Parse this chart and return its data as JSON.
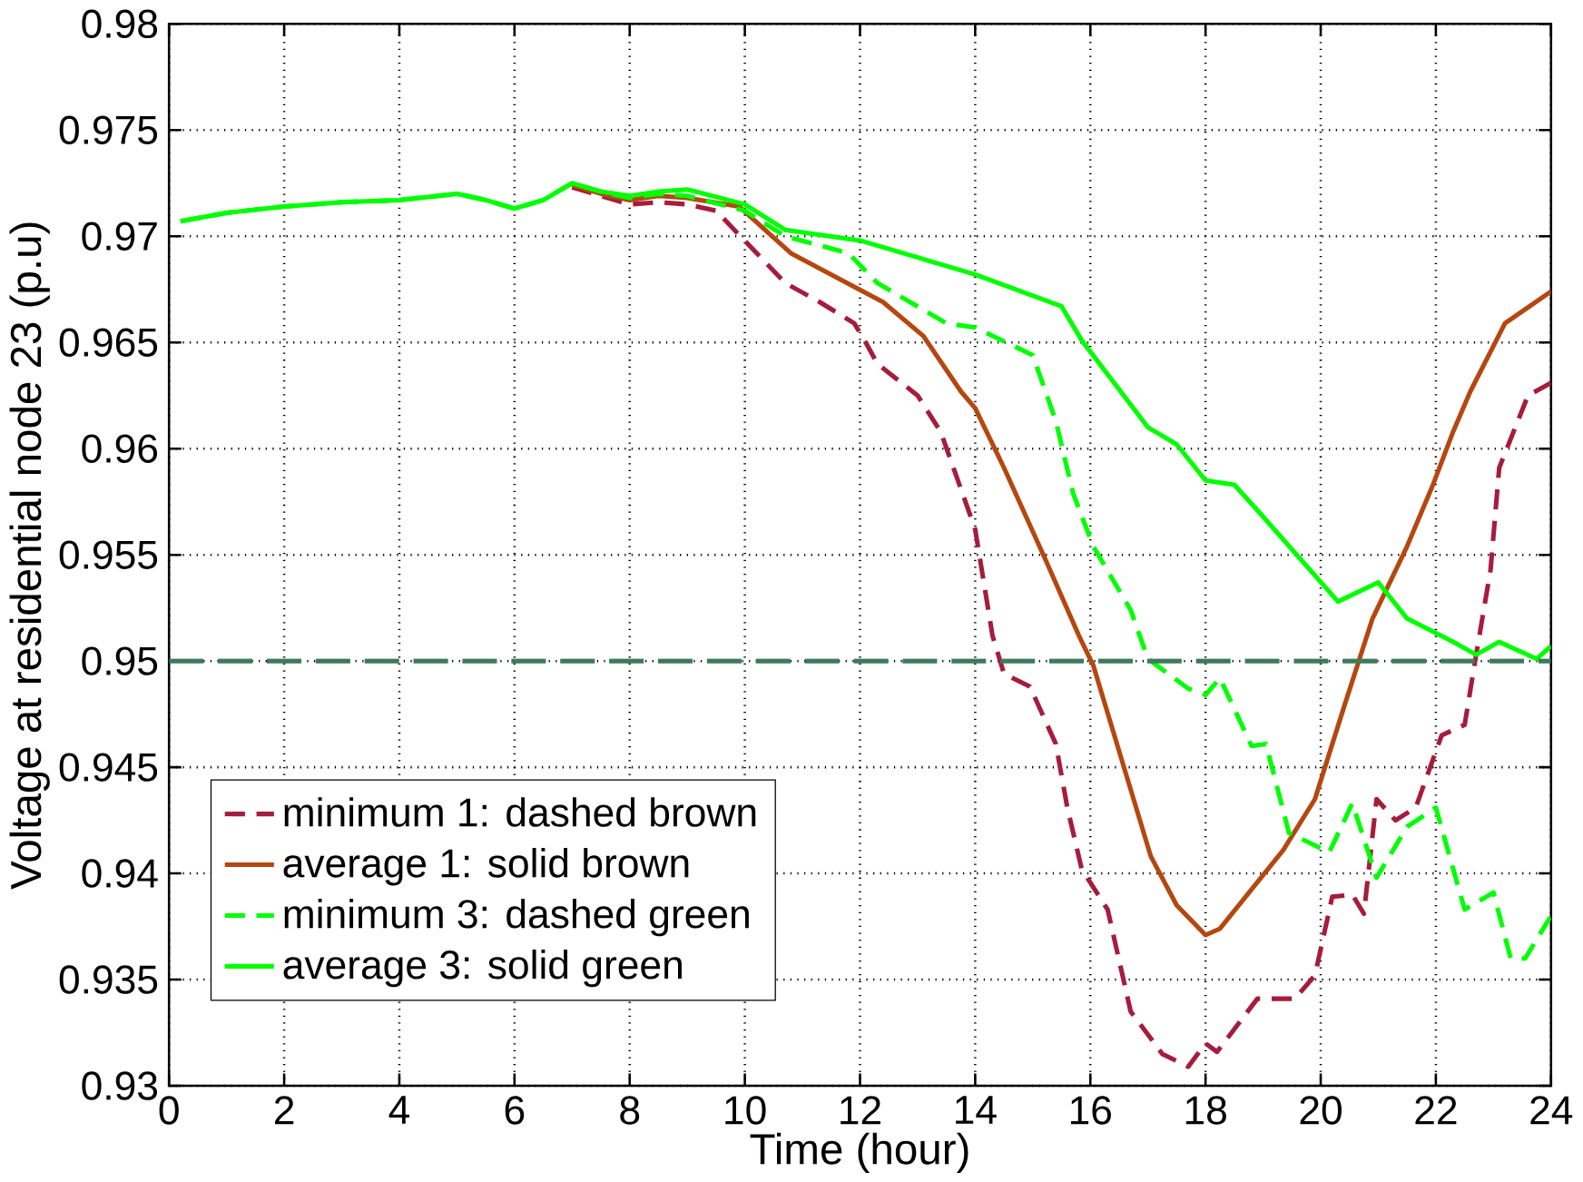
{
  "chart_data": {
    "type": "line",
    "xlabel": "Time (hour)",
    "ylabel": "Voltage at residential node 23 (p.u)",
    "xlim": [
      0,
      24
    ],
    "ylim": [
      0.93,
      0.98
    ],
    "xticks": [
      0,
      2,
      4,
      6,
      8,
      10,
      12,
      14,
      16,
      18,
      20,
      22,
      24
    ],
    "yticks": [
      0.93,
      0.935,
      0.94,
      0.945,
      0.95,
      0.955,
      0.96,
      0.965,
      0.97,
      0.975,
      0.98
    ],
    "grid": true,
    "legend": "bottom left",
    "marker": "none",
    "ref_lines": [
      {
        "axis": "y",
        "value": 0.95,
        "color": "#3d7a5c",
        "line_style": "dashed"
      }
    ],
    "series": [
      {
        "name": "minimum 1: dashed brown",
        "color": "#a61c3c",
        "line_style": "dashed",
        "x": [
          7,
          7.5,
          8,
          8.5,
          9,
          9.5,
          10.7,
          11.3,
          11.9,
          12.1,
          12.3,
          13.0,
          13.4,
          14.0,
          14.3,
          14.5,
          14.95,
          15.4,
          15.6,
          15.85,
          16.3,
          16.7,
          17.25,
          17.7,
          18.0,
          18.2,
          18.9,
          19.55,
          19.9,
          20.2,
          20.55,
          20.75,
          20.97,
          21.3,
          21.65,
          22.1,
          22.5,
          22.7,
          22.95,
          23.1,
          23.6,
          24
        ],
        "values": [
          0.9723,
          0.9719,
          0.9715,
          0.9716,
          0.9715,
          0.9712,
          0.9678,
          0.9669,
          0.9659,
          0.965,
          0.964,
          0.9625,
          0.9608,
          0.9562,
          0.9512,
          0.9494,
          0.9488,
          0.9461,
          0.9431,
          0.9402,
          0.9383,
          0.9335,
          0.9315,
          0.9309,
          0.932,
          0.9316,
          0.9341,
          0.9341,
          0.9352,
          0.9389,
          0.939,
          0.9381,
          0.9435,
          0.9425,
          0.9431,
          0.9465,
          0.947,
          0.9503,
          0.9543,
          0.9591,
          0.9625,
          0.9631
        ]
      },
      {
        "name": "average 1: solid brown",
        "color": "#b5470f",
        "line_style": "solid",
        "x": [
          7,
          7.5,
          8,
          8.5,
          9,
          9.9,
          10.8,
          12.4,
          13.1,
          13.75,
          14.0,
          14.5,
          15.2,
          15.8,
          16.05,
          17.05,
          17.5,
          18.0,
          18.25,
          19.35,
          19.9,
          20.4,
          20.9,
          21.5,
          21.95,
          22.3,
          22.6,
          23.2,
          24
        ],
        "values": [
          0.9724,
          0.972,
          0.9717,
          0.9719,
          0.9718,
          0.9714,
          0.9692,
          0.9669,
          0.9653,
          0.9627,
          0.9619,
          0.9591,
          0.9549,
          0.9512,
          0.9498,
          0.9408,
          0.9385,
          0.9371,
          0.9374,
          0.9411,
          0.9435,
          0.9478,
          0.952,
          0.9554,
          0.9583,
          0.9608,
          0.9627,
          0.9659,
          0.9674
        ]
      },
      {
        "name": "minimum 3: dashed green",
        "color": "#00ff00",
        "line_style": "dashed",
        "x": [
          0.2,
          1,
          2,
          3,
          4,
          5,
          5.5,
          6,
          6.5,
          7,
          7.5,
          8,
          8.5,
          9,
          10,
          10.7,
          11.8,
          12.3,
          13.5,
          14.0,
          15.0,
          15.4,
          15.7,
          16.05,
          16.7,
          17.0,
          17.7,
          18.0,
          18.25,
          18.8,
          19.05,
          19.45,
          20.15,
          20.55,
          20.97,
          21.5,
          22.0,
          22.5,
          23.0,
          23.3,
          23.55,
          24
        ],
        "values": [
          0.9707,
          0.9711,
          0.9714,
          0.9716,
          0.9717,
          0.972,
          0.9717,
          0.9713,
          0.9717,
          0.9725,
          0.9721,
          0.9718,
          0.972,
          0.9719,
          0.9712,
          0.97,
          0.9692,
          0.9678,
          0.9659,
          0.9657,
          0.9644,
          0.9613,
          0.9579,
          0.9554,
          0.9524,
          0.9501,
          0.9487,
          0.9484,
          0.9492,
          0.946,
          0.9461,
          0.9419,
          0.941,
          0.9433,
          0.9398,
          0.9422,
          0.9431,
          0.9383,
          0.9391,
          0.936,
          0.936,
          0.938
        ]
      },
      {
        "name": "average 3: solid green",
        "color": "#00ff00",
        "line_style": "solid",
        "x": [
          0.2,
          1,
          2,
          3,
          4,
          5,
          5.5,
          6,
          6.5,
          7,
          7.5,
          8,
          8.5,
          9,
          10,
          10.7,
          12.0,
          14.0,
          15.5,
          15.85,
          17.0,
          17.5,
          18.0,
          18.5,
          18.9,
          20.3,
          21.0,
          21.5,
          22.3,
          22.7,
          23.1,
          23.75,
          24
        ],
        "values": [
          0.9707,
          0.9711,
          0.9714,
          0.9716,
          0.9717,
          0.972,
          0.9717,
          0.9713,
          0.9717,
          0.9725,
          0.9721,
          0.9719,
          0.9721,
          0.9722,
          0.9715,
          0.9703,
          0.9698,
          0.9682,
          0.9667,
          0.9651,
          0.961,
          0.9602,
          0.9585,
          0.9583,
          0.9571,
          0.9528,
          0.9537,
          0.952,
          0.9509,
          0.9503,
          0.9509,
          0.9501,
          0.9507
        ]
      }
    ]
  }
}
